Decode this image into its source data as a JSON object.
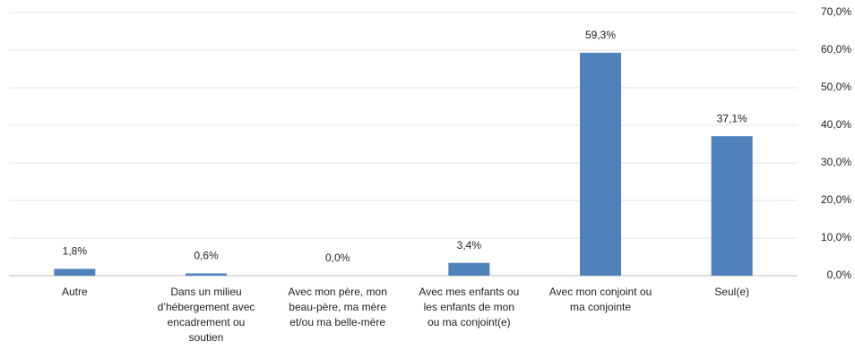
{
  "chart_data": {
    "type": "bar",
    "categories": [
      "Autre",
      "Dans un milieu\nd’hébergement avec\nencadrement ou\nsoutien",
      "Avec mon père, mon\nbeau-père, ma mère\net/ou ma belle-mère",
      "Avec mes enfants ou\nles enfants de mon\nou ma conjoint(e)",
      "Avec mon conjoint ou\nma conjointe",
      "Seul(e)"
    ],
    "values": [
      1.8,
      0.6,
      0.0,
      3.4,
      59.3,
      37.1
    ],
    "value_labels": [
      "1,8%",
      "0,6%",
      "0,0%",
      "3,4%",
      "59,3%",
      "37,1%"
    ],
    "color": "#4f81bd",
    "ylim": [
      0,
      70
    ],
    "yticks": [
      {
        "value": 0,
        "label": "0,0%"
      },
      {
        "value": 10,
        "label": "10,0%"
      },
      {
        "value": 20,
        "label": "20,0%"
      },
      {
        "value": 30,
        "label": "30,0%"
      },
      {
        "value": 40,
        "label": "40,0%"
      },
      {
        "value": 50,
        "label": "50,0%"
      },
      {
        "value": 60,
        "label": "60,0%"
      },
      {
        "value": 70,
        "label": "70,0%"
      }
    ],
    "y_axis_side": "right",
    "grid": true
  }
}
